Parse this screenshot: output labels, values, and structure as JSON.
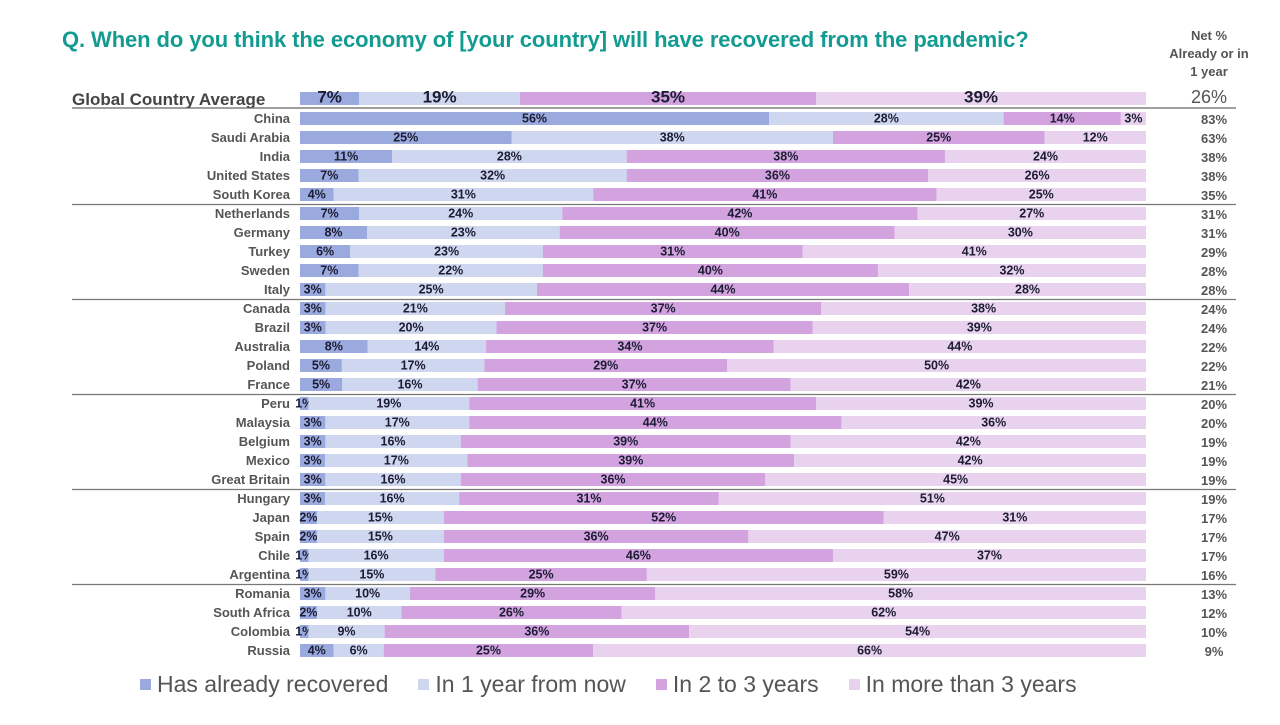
{
  "chart_data": {
    "type": "bar",
    "orientation": "horizontal-stacked-100",
    "title": "Q. When do you think the economy of [your country] will have recovered from the pandemic?",
    "net_column_header": "Net % Already or in 1 year",
    "series": [
      {
        "name": "Has already recovered",
        "color": "#9aa9de"
      },
      {
        "name": "In 1 year from now",
        "color": "#cfd6ef"
      },
      {
        "name": "In 2 to 3 years",
        "color": "#d3a3df"
      },
      {
        "name": "In more than 3 years",
        "color": "#e8d2ee"
      }
    ],
    "average": {
      "label": "Global Country Average",
      "values": [
        7,
        19,
        35,
        39
      ],
      "net": "26%"
    },
    "rows": [
      {
        "country": "China",
        "values": [
          56,
          28,
          14,
          3
        ],
        "net": "83%"
      },
      {
        "country": "Saudi Arabia",
        "values": [
          25,
          38,
          25,
          12
        ],
        "net": "63%"
      },
      {
        "country": "India",
        "values": [
          11,
          28,
          38,
          24
        ],
        "net": "38%"
      },
      {
        "country": "United States",
        "values": [
          7,
          32,
          36,
          26
        ],
        "net": "38%"
      },
      {
        "country": "South Korea",
        "values": [
          4,
          31,
          41,
          25
        ],
        "net": "35%"
      },
      {
        "country": "Netherlands",
        "values": [
          7,
          24,
          42,
          27
        ],
        "net": "31%"
      },
      {
        "country": "Germany",
        "values": [
          8,
          23,
          40,
          30
        ],
        "net": "31%"
      },
      {
        "country": "Turkey",
        "values": [
          6,
          23,
          31,
          41
        ],
        "net": "29%"
      },
      {
        "country": "Sweden",
        "values": [
          7,
          22,
          40,
          32
        ],
        "net": "28%"
      },
      {
        "country": "Italy",
        "values": [
          3,
          25,
          44,
          28
        ],
        "net": "28%"
      },
      {
        "country": "Canada",
        "values": [
          3,
          21,
          37,
          38
        ],
        "net": "24%"
      },
      {
        "country": "Brazil",
        "values": [
          3,
          20,
          37,
          39
        ],
        "net": "24%"
      },
      {
        "country": "Australia",
        "values": [
          8,
          14,
          34,
          44
        ],
        "net": "22%"
      },
      {
        "country": "Poland",
        "values": [
          5,
          17,
          29,
          50
        ],
        "net": "22%"
      },
      {
        "country": "France",
        "values": [
          5,
          16,
          37,
          42
        ],
        "net": "21%"
      },
      {
        "country": "Peru",
        "values": [
          1,
          19,
          41,
          39
        ],
        "net": "20%"
      },
      {
        "country": "Malaysia",
        "values": [
          3,
          17,
          44,
          36
        ],
        "net": "20%"
      },
      {
        "country": "Belgium",
        "values": [
          3,
          16,
          39,
          42
        ],
        "net": "19%"
      },
      {
        "country": "Mexico",
        "values": [
          3,
          17,
          39,
          42
        ],
        "net": "19%"
      },
      {
        "country": "Great Britain",
        "values": [
          3,
          16,
          36,
          45
        ],
        "net": "19%"
      },
      {
        "country": "Hungary",
        "values": [
          3,
          16,
          31,
          51
        ],
        "net": "19%"
      },
      {
        "country": "Japan",
        "values": [
          2,
          15,
          52,
          31
        ],
        "net": "17%"
      },
      {
        "country": "Spain",
        "values": [
          2,
          15,
          36,
          47
        ],
        "net": "17%"
      },
      {
        "country": "Chile",
        "values": [
          1,
          16,
          46,
          37
        ],
        "net": "17%"
      },
      {
        "country": "Argentina",
        "values": [
          1,
          15,
          25,
          59
        ],
        "net": "16%"
      },
      {
        "country": "Romania",
        "values": [
          3,
          10,
          29,
          58
        ],
        "net": "13%"
      },
      {
        "country": "South Africa",
        "values": [
          2,
          10,
          26,
          62
        ],
        "net": "12%"
      },
      {
        "country": "Colombia",
        "values": [
          1,
          9,
          36,
          54
        ],
        "net": "10%"
      },
      {
        "country": "Russia",
        "values": [
          4,
          6,
          25,
          66
        ],
        "net": "9%"
      }
    ],
    "legend_position": "bottom",
    "xlim": [
      0,
      100
    ],
    "grid": false
  }
}
